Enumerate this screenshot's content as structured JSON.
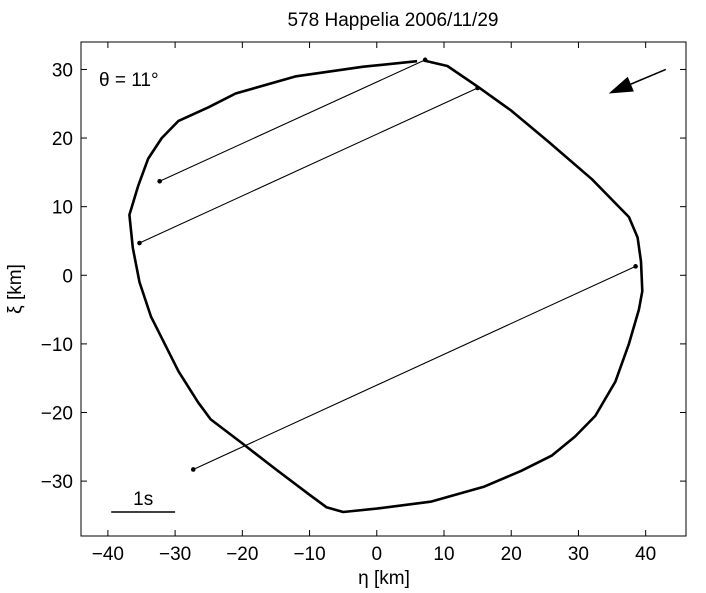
{
  "chart_data": {
    "type": "scatter",
    "title": "578 Happelia   2006/11/29",
    "xlabel": "η [km]",
    "ylabel": "ξ [km]",
    "xlim": [
      -44,
      46
    ],
    "ylim": [
      -38,
      34
    ],
    "xticks": [
      -40,
      -30,
      -20,
      -10,
      0,
      10,
      20,
      30,
      40
    ],
    "yticks": [
      -30,
      -20,
      -10,
      0,
      10,
      20,
      30
    ],
    "xtick_labels": [
      "−40",
      "−30",
      "−20",
      "−10",
      "0",
      "10",
      "20",
      "30",
      "40"
    ],
    "ytick_labels": [
      "−30",
      "−20",
      "−10",
      "0",
      "10",
      "20",
      "30"
    ],
    "angle_label": "θ = 11°",
    "scale_bar_label": "1s",
    "scale_bar": {
      "x1": -39.5,
      "x2": -30,
      "y": -34.5
    },
    "arrow": {
      "from": [
        43,
        30
      ],
      "to": [
        34.5,
        26.5
      ]
    },
    "grid": false,
    "outline": [
      [
        6,
        31.2
      ],
      [
        -2,
        30.4
      ],
      [
        -12,
        29
      ],
      [
        -21,
        26.5
      ],
      [
        -25,
        24.5
      ],
      [
        -29.5,
        22.5
      ],
      [
        -32,
        20
      ],
      [
        -34,
        17
      ],
      [
        -35.5,
        13
      ],
      [
        -36.8,
        8.8
      ],
      [
        -36.3,
        4
      ],
      [
        -35.3,
        -1
      ],
      [
        -33.6,
        -6
      ],
      [
        -29.5,
        -14
      ],
      [
        -26.6,
        -18.5
      ],
      [
        -24.7,
        -21
      ],
      [
        -20,
        -24.5
      ],
      [
        -15,
        -28.3
      ],
      [
        -10,
        -32
      ],
      [
        -7.5,
        -33.8
      ],
      [
        -5,
        -34.5
      ],
      [
        0,
        -34
      ],
      [
        8,
        -33
      ],
      [
        16,
        -30.8
      ],
      [
        21.5,
        -28.5
      ],
      [
        26,
        -26.3
      ],
      [
        29.5,
        -23.5
      ],
      [
        32.5,
        -20.5
      ],
      [
        35.5,
        -15.5
      ],
      [
        37.5,
        -10
      ],
      [
        39,
        -5
      ],
      [
        39.5,
        -2.3
      ],
      [
        39.3,
        2
      ],
      [
        38.8,
        5.5
      ],
      [
        37.5,
        8.5
      ],
      [
        32,
        14
      ],
      [
        25.5,
        19.5
      ],
      [
        20,
        24
      ],
      [
        15,
        27.5
      ],
      [
        10.5,
        30.5
      ],
      [
        7,
        31.3
      ]
    ],
    "chords": [
      {
        "start": [
          -32.3,
          13.7
        ],
        "end": [
          7.2,
          31.4
        ]
      },
      {
        "start": [
          -35.3,
          4.7
        ],
        "end": [
          15,
          27.3
        ]
      },
      {
        "start": [
          -27.3,
          -28.3
        ],
        "end": [
          38.5,
          1.3
        ]
      }
    ]
  }
}
